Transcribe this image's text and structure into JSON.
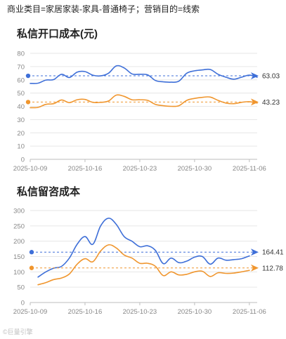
{
  "header": {
    "text": "商业类目=家居家装-家具-普通椅子；营销目的=线索"
  },
  "watermark": {
    "text": "©巨量引擎"
  },
  "chart_data": [
    {
      "type": "line",
      "title": "私信开口成本(元)",
      "xlabel": "",
      "ylabel": "",
      "ylim": [
        0,
        80
      ],
      "yticks": [
        0,
        10,
        20,
        30,
        40,
        50,
        60,
        70,
        80
      ],
      "xlim": [
        "2025-10-09",
        "2025-11-07"
      ],
      "xticks": [
        "2025-10-09",
        "2025-10-16",
        "2025-10-23",
        "2025-10-30",
        "2025-11-06"
      ],
      "grid": true,
      "series": [
        {
          "color": "#3e6fd8",
          "points": [
            [
              "2025-10-09",
              57.3
            ],
            [
              "2025-10-10",
              57.5
            ],
            [
              "2025-10-11",
              59.8
            ],
            [
              "2025-10-12",
              60.2
            ],
            [
              "2025-10-13",
              64.2
            ],
            [
              "2025-10-14",
              61.8
            ],
            [
              "2025-10-15",
              65.8
            ],
            [
              "2025-10-16",
              66.2
            ],
            [
              "2025-10-17",
              63.5
            ],
            [
              "2025-10-18",
              63.0
            ],
            [
              "2025-10-19",
              65.0
            ],
            [
              "2025-10-20",
              70.5
            ],
            [
              "2025-10-21",
              69.0
            ],
            [
              "2025-10-22",
              64.5
            ],
            [
              "2025-10-23",
              64.2
            ],
            [
              "2025-10-24",
              63.8
            ],
            [
              "2025-10-25",
              59.5
            ],
            [
              "2025-10-26",
              58.5
            ],
            [
              "2025-10-27",
              58.2
            ],
            [
              "2025-10-28",
              59.0
            ],
            [
              "2025-10-29",
              65.0
            ],
            [
              "2025-10-30",
              66.8
            ],
            [
              "2025-10-31",
              67.5
            ],
            [
              "2025-11-01",
              67.8
            ],
            [
              "2025-11-02",
              64.2
            ],
            [
              "2025-11-03",
              62.0
            ],
            [
              "2025-11-04",
              60.5
            ],
            [
              "2025-11-05",
              62.0
            ],
            [
              "2025-11-06",
              63.5
            ],
            [
              "2025-11-07",
              62.0
            ]
          ],
          "reference": {
            "value": 63.03,
            "label": "63.03"
          }
        },
        {
          "color": "#f0962e",
          "points": [
            [
              "2025-10-09",
              39.0
            ],
            [
              "2025-10-10",
              39.2
            ],
            [
              "2025-10-11",
              41.5
            ],
            [
              "2025-10-12",
              42.0
            ],
            [
              "2025-10-13",
              44.8
            ],
            [
              "2025-10-14",
              42.8
            ],
            [
              "2025-10-15",
              45.0
            ],
            [
              "2025-10-16",
              45.2
            ],
            [
              "2025-10-17",
              43.0
            ],
            [
              "2025-10-18",
              43.0
            ],
            [
              "2025-10-19",
              44.0
            ],
            [
              "2025-10-20",
              48.5
            ],
            [
              "2025-10-21",
              47.5
            ],
            [
              "2025-10-22",
              45.0
            ],
            [
              "2025-10-23",
              45.0
            ],
            [
              "2025-10-24",
              44.5
            ],
            [
              "2025-10-25",
              41.5
            ],
            [
              "2025-10-26",
              40.5
            ],
            [
              "2025-10-27",
              40.0
            ],
            [
              "2025-10-28",
              40.5
            ],
            [
              "2025-10-29",
              44.5
            ],
            [
              "2025-10-30",
              46.0
            ],
            [
              "2025-10-31",
              46.8
            ],
            [
              "2025-11-01",
              47.0
            ],
            [
              "2025-11-02",
              44.5
            ],
            [
              "2025-11-03",
              42.5
            ],
            [
              "2025-11-04",
              42.0
            ],
            [
              "2025-11-05",
              43.0
            ],
            [
              "2025-11-06",
              43.5
            ],
            [
              "2025-11-07",
              42.5
            ]
          ],
          "reference": {
            "value": 43.23,
            "label": "43.23"
          }
        }
      ]
    },
    {
      "type": "line",
      "title": "私信留咨成本",
      "xlabel": "",
      "ylabel": "",
      "ylim": [
        0,
        300
      ],
      "yticks": [
        0,
        50,
        100,
        150,
        200,
        250,
        300
      ],
      "xlim": [
        "2025-10-09",
        "2025-11-07"
      ],
      "xticks": [
        "2025-10-09",
        "2025-10-16",
        "2025-10-23",
        "2025-10-30",
        "2025-11-06"
      ],
      "grid": true,
      "series": [
        {
          "color": "#3e6fd8",
          "points": [
            [
              "2025-10-10",
              83
            ],
            [
              "2025-10-11",
              100
            ],
            [
              "2025-10-12",
              112
            ],
            [
              "2025-10-13",
              118
            ],
            [
              "2025-10-14",
              145
            ],
            [
              "2025-10-15",
              190
            ],
            [
              "2025-10-16",
              215
            ],
            [
              "2025-10-17",
              190
            ],
            [
              "2025-10-18",
              250
            ],
            [
              "2025-10-19",
              275
            ],
            [
              "2025-10-20",
              255
            ],
            [
              "2025-10-21",
              215
            ],
            [
              "2025-10-22",
              200
            ],
            [
              "2025-10-23",
              182
            ],
            [
              "2025-10-24",
              185
            ],
            [
              "2025-10-25",
              170
            ],
            [
              "2025-10-26",
              127
            ],
            [
              "2025-10-27",
              145
            ],
            [
              "2025-10-28",
              130
            ],
            [
              "2025-10-29",
              135
            ],
            [
              "2025-10-30",
              148
            ],
            [
              "2025-10-31",
              150
            ],
            [
              "2025-11-01",
              125
            ],
            [
              "2025-11-02",
              145
            ],
            [
              "2025-11-03",
              138
            ],
            [
              "2025-11-04",
              140
            ],
            [
              "2025-11-05",
              143
            ],
            [
              "2025-11-06",
              152
            ]
          ],
          "reference": {
            "value": 164.41,
            "label": "164.41"
          }
        },
        {
          "color": "#f0962e",
          "points": [
            [
              "2025-10-10",
              58
            ],
            [
              "2025-10-11",
              65
            ],
            [
              "2025-10-12",
              75
            ],
            [
              "2025-10-13",
              80
            ],
            [
              "2025-10-14",
              93
            ],
            [
              "2025-10-15",
              125
            ],
            [
              "2025-10-16",
              143
            ],
            [
              "2025-10-17",
              133
            ],
            [
              "2025-10-18",
              168
            ],
            [
              "2025-10-19",
              188
            ],
            [
              "2025-10-20",
              178
            ],
            [
              "2025-10-21",
              155
            ],
            [
              "2025-10-22",
              145
            ],
            [
              "2025-10-23",
              128
            ],
            [
              "2025-10-24",
              128
            ],
            [
              "2025-10-25",
              118
            ],
            [
              "2025-10-26",
              88
            ],
            [
              "2025-10-27",
              100
            ],
            [
              "2025-10-28",
              90
            ],
            [
              "2025-10-29",
              92
            ],
            [
              "2025-10-30",
              100
            ],
            [
              "2025-10-31",
              102
            ],
            [
              "2025-11-01",
              85
            ],
            [
              "2025-11-02",
              97
            ],
            [
              "2025-11-03",
              95
            ],
            [
              "2025-11-04",
              96
            ],
            [
              "2025-11-05",
              100
            ],
            [
              "2025-11-06",
              105
            ]
          ],
          "reference": {
            "value": 112.78,
            "label": "112.78"
          }
        }
      ]
    }
  ]
}
